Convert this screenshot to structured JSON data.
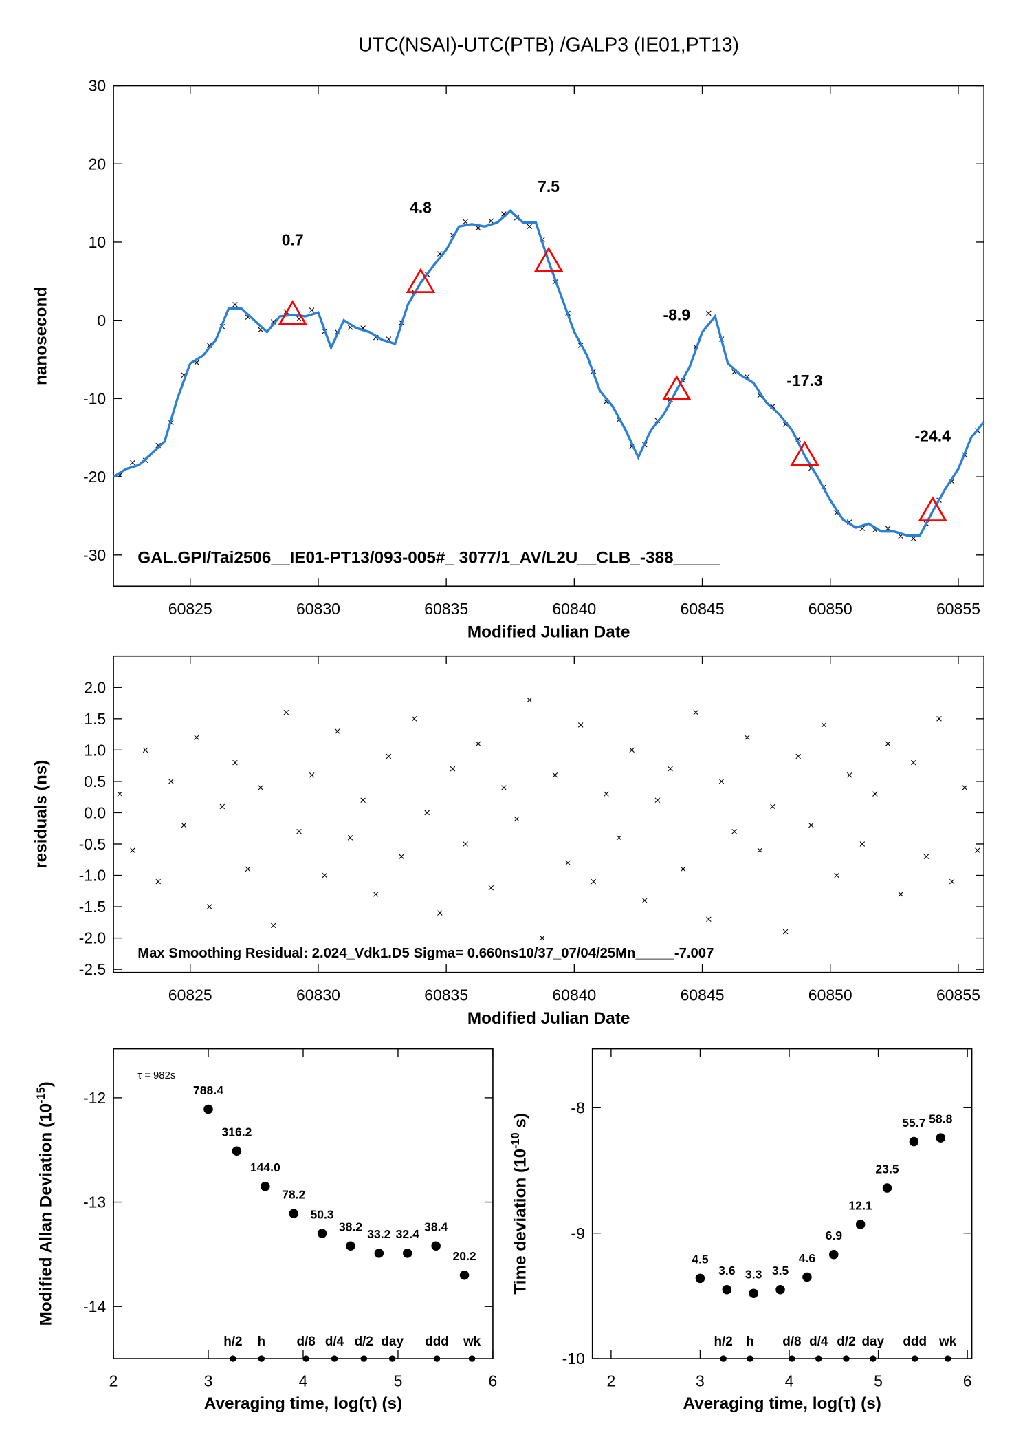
{
  "chart_data": [
    {
      "type": "line",
      "title": "UTC(NSAI)-UTC(PTB)  /GALP3  (IE01,PT13)",
      "xlabel": "Modified Julian Date",
      "ylabel": [
        "nanosecond"
      ],
      "xlim": [
        60822,
        60856
      ],
      "ylim": [
        -34,
        30
      ],
      "xticks": [
        60825,
        60830,
        60835,
        60840,
        60845,
        60850,
        60855
      ],
      "yticks": [
        -30,
        -20,
        -10,
        0,
        10,
        20,
        30
      ],
      "color": "#2b7fd6",
      "raw_color": "#000000",
      "marker_color": "#ff0000",
      "x": [
        60822,
        60822.5,
        60823,
        60823.5,
        60824,
        60824.5,
        60825,
        60825.5,
        60826,
        60826.5,
        60827,
        60827.5,
        60828,
        60828.5,
        60829,
        60829.5,
        60830,
        60830.5,
        60831,
        60831.5,
        60832,
        60832.5,
        60833,
        60833.5,
        60834,
        60834.5,
        60835,
        60835.5,
        60836,
        60836.5,
        60837,
        60837.5,
        60838,
        60838.5,
        60839,
        60839.5,
        60840,
        60840.5,
        60841,
        60841.5,
        60842,
        60842.5,
        60843,
        60843.5,
        60844,
        60844.5,
        60845,
        60845.5,
        60846,
        60846.5,
        60847,
        60847.5,
        60848,
        60848.5,
        60849,
        60849.5,
        60850,
        60850.5,
        60851,
        60851.5,
        60852,
        60852.5,
        60853,
        60853.5,
        60854,
        60854.5,
        60855,
        60855.5,
        60856
      ],
      "values": [
        -20,
        -19,
        -18.5,
        -17,
        -15.5,
        -10,
        -5.5,
        -4.5,
        -2.5,
        1.5,
        1.5,
        0,
        -1.5,
        0.5,
        0.7,
        0.5,
        1,
        -3.5,
        0,
        -1,
        -1.5,
        -2.5,
        -3,
        2,
        4.8,
        7,
        9,
        12,
        12.3,
        12,
        12.5,
        14,
        12.5,
        12.5,
        7.5,
        3,
        -1.5,
        -4.5,
        -9,
        -11,
        -14,
        -17.5,
        -14,
        -12,
        -8.9,
        -6,
        -1.5,
        0.5,
        -5.5,
        -7,
        -8,
        -10.5,
        -12,
        -14,
        -17.3,
        -20,
        -23,
        -25.5,
        -26.5,
        -26,
        -27,
        -27,
        -27.5,
        -27.5,
        -24.4,
        -21.5,
        -19,
        -15,
        -13
      ],
      "raw_x": [
        60822.25,
        60822.75,
        60823.25,
        60823.75,
        60824.25,
        60824.75,
        60825.25,
        60825.75,
        60826.25,
        60826.75,
        60827.25,
        60827.75,
        60828.25,
        60828.75,
        60829.25,
        60829.75,
        60830.25,
        60830.75,
        60831.25,
        60831.75,
        60832.25,
        60832.75,
        60833.25,
        60833.75,
        60834.25,
        60834.75,
        60835.25,
        60835.75,
        60836.25,
        60836.75,
        60837.25,
        60837.75,
        60838.25,
        60838.75,
        60839.25,
        60839.75,
        60840.25,
        60840.75,
        60841.25,
        60841.75,
        60842.25,
        60842.75,
        60843.25,
        60843.75,
        60844.25,
        60844.75,
        60845.25,
        60845.75,
        60846.25,
        60846.75,
        60847.25,
        60847.75,
        60848.25,
        60848.75,
        60849.25,
        60849.75,
        60850.25,
        60850.75,
        60851.25,
        60851.75,
        60852.25,
        60852.75,
        60853.25,
        60853.75,
        60854.25,
        60854.75,
        60855.25,
        60855.75
      ],
      "raw_values": [
        -19.8,
        -18.2,
        -17.9,
        -16.0,
        -13.1,
        -7.0,
        -5.4,
        -3.2,
        -0.8,
        2.0,
        0.4,
        -1.2,
        -0.2,
        1.1,
        0.2,
        1.3,
        -1.4,
        -1.5,
        -0.9,
        -1.0,
        -2.2,
        -2.4,
        -0.3,
        3.6,
        5.9,
        8.5,
        10.9,
        12.6,
        11.8,
        12.7,
        13.6,
        13.1,
        12.0,
        10.3,
        4.9,
        0.9,
        -3.2,
        -6.5,
        -10.4,
        -12.7,
        -16.1,
        -15.9,
        -12.8,
        -10.1,
        -7.7,
        -3.4,
        0.9,
        -2.4,
        -6.6,
        -7.2,
        -9.6,
        -11.0,
        -13.3,
        -15.2,
        -18.9,
        -21.3,
        -24.6,
        -25.8,
        -26.6,
        -26.8,
        -26.6,
        -27.6,
        -27.9,
        -26.0,
        -23.0,
        -20.6,
        -17.2,
        -14.1
      ],
      "markers_x": [
        60829,
        60834,
        60839,
        60844,
        60849,
        60854
      ],
      "markers": [
        0.7,
        4.8,
        7.5,
        -8.9,
        -17.3,
        -24.4
      ],
      "annotation": "GAL.GPI/Tai2506__IE01-PT13/093-005#_  3077/1_AV/L2U__CLB_-388_____"
    },
    {
      "type": "scatter",
      "marker": "x",
      "xlabel": "Modified Julian Date",
      "ylabel": [
        "residuals (ns)"
      ],
      "xlim": [
        60822,
        60856
      ],
      "ylim": [
        -2.55,
        2.5
      ],
      "xticks": [
        60825,
        60830,
        60835,
        60840,
        60845,
        60850,
        60855
      ],
      "yticks": [
        {
          "value": 2,
          "label": "2.0"
        },
        1.5,
        {
          "value": 1,
          "label": "1.0"
        },
        0.5,
        {
          "value": 0,
          "label": "0.0"
        },
        -0.5,
        {
          "value": -1,
          "label": "-1.0"
        },
        -1.5,
        {
          "value": -2,
          "label": "-2.0"
        },
        -2.5
      ],
      "color": "#000000",
      "x": [
        60822.25,
        60822.75,
        60823.25,
        60823.75,
        60824.25,
        60824.75,
        60825.25,
        60825.75,
        60826.25,
        60826.75,
        60827.25,
        60827.75,
        60828.25,
        60828.75,
        60829.25,
        60829.75,
        60830.25,
        60830.75,
        60831.25,
        60831.75,
        60832.25,
        60832.75,
        60833.25,
        60833.75,
        60834.25,
        60834.75,
        60835.25,
        60835.75,
        60836.25,
        60836.75,
        60837.25,
        60837.75,
        60838.25,
        60838.75,
        60839.25,
        60839.75,
        60840.25,
        60840.75,
        60841.25,
        60841.75,
        60842.25,
        60842.75,
        60843.25,
        60843.75,
        60844.25,
        60844.75,
        60845.25,
        60845.75,
        60846.25,
        60846.75,
        60847.25,
        60847.75,
        60848.25,
        60848.75,
        60849.25,
        60849.75,
        60850.25,
        60850.75,
        60851.25,
        60851.75,
        60852.25,
        60852.75,
        60853.25,
        60853.75,
        60854.25,
        60854.75,
        60855.25,
        60855.75
      ],
      "values": [
        0.3,
        -0.6,
        1.0,
        -1.1,
        0.5,
        -0.2,
        1.2,
        -1.5,
        0.1,
        0.8,
        -0.9,
        0.4,
        -1.8,
        1.6,
        -0.3,
        0.6,
        -1.0,
        1.3,
        -0.4,
        0.2,
        -1.3,
        0.9,
        -0.7,
        1.5,
        0.0,
        -1.6,
        0.7,
        -0.5,
        1.1,
        -1.2,
        0.4,
        -0.1,
        1.8,
        -2.0,
        0.6,
        -0.8,
        1.4,
        -1.1,
        0.3,
        -0.4,
        1.0,
        -1.4,
        0.2,
        0.7,
        -0.9,
        1.6,
        -1.7,
        0.5,
        -0.3,
        1.2,
        -0.6,
        0.1,
        -1.9,
        0.9,
        -0.2,
        1.4,
        -1.0,
        0.6,
        -0.5,
        0.3,
        1.1,
        -1.3,
        0.8,
        -0.7,
        1.5,
        -1.1,
        0.4,
        -0.6
      ],
      "annotation": "Max Smoothing Residual: 2.024_Vdk1.D5  Sigma= 0.660ns10/37_07/04/25Mn_____-7.007"
    },
    {
      "type": "scatter",
      "marker": "dot",
      "xlabel": "Averaging time, log(τ) (s)",
      "ylabel": [
        "Modified Allan Deviation (10",
        "-15",
        ")"
      ],
      "xlim": [
        2,
        6
      ],
      "ylim": [
        -14.5,
        -11.53
      ],
      "xticks": [
        2,
        3,
        4,
        5,
        6
      ],
      "yticks": [
        -14,
        -13,
        -12
      ],
      "color": "#000000",
      "label_color": "#ff0000",
      "note": "τ = 982s",
      "x": [
        3.0,
        3.3,
        3.6,
        3.9,
        4.2,
        4.5,
        4.8,
        5.1,
        5.4,
        5.7
      ],
      "values": [
        -12.11,
        -12.51,
        -12.85,
        -13.11,
        -13.3,
        -13.42,
        -13.49,
        -13.49,
        -13.42,
        -13.7
      ],
      "point_labels": [
        "788.4",
        "316.2",
        "144.0",
        "78.2",
        "50.3",
        "38.2",
        "33.2",
        "32.4",
        "38.4",
        "20.2"
      ],
      "interval_labels": [
        "h/2",
        "h",
        "d/8",
        "d/4",
        "d/2",
        "day",
        "ddd",
        "wk"
      ],
      "interval_x": [
        3.26,
        3.56,
        4.03,
        4.33,
        4.64,
        4.94,
        5.41,
        5.78
      ]
    },
    {
      "type": "scatter",
      "marker": "dot",
      "xlabel": "Averaging time, log(τ) (s)",
      "ylabel": [
        "Time deviation (10",
        "-10",
        " s)"
      ],
      "xlim": [
        1.79,
        6.05
      ],
      "ylim": [
        -10,
        -7.53
      ],
      "xticks": [
        2,
        3,
        4,
        5,
        6
      ],
      "yticks": [
        -10,
        -9,
        -8
      ],
      "color": "#000000",
      "label_color": "#ff0000",
      "x": [
        3.0,
        3.3,
        3.6,
        3.9,
        4.2,
        4.5,
        4.8,
        5.1,
        5.4,
        5.7
      ],
      "values": [
        -9.36,
        -9.45,
        -9.48,
        -9.45,
        -9.35,
        -9.17,
        -8.93,
        -8.64,
        -8.27,
        -8.24
      ],
      "point_labels": [
        "4.5",
        "3.6",
        "3.3",
        "3.5",
        "4.6",
        "6.9",
        "12.1",
        "23.5",
        "55.7",
        "58.8"
      ],
      "interval_labels": [
        "h/2",
        "h",
        "d/8",
        "d/4",
        "d/2",
        "day",
        "ddd",
        "wk"
      ],
      "interval_x": [
        3.26,
        3.56,
        4.03,
        4.33,
        4.64,
        4.94,
        5.41,
        5.78
      ]
    }
  ]
}
